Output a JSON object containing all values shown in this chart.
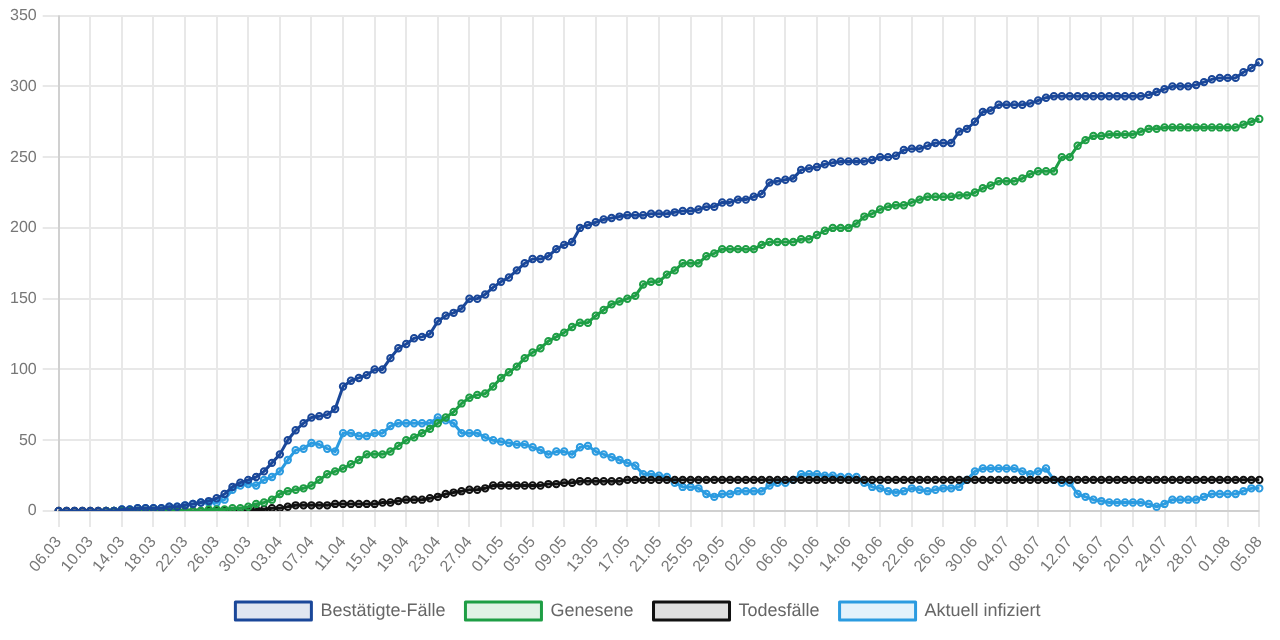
{
  "chart_data": {
    "type": "line",
    "marker": "circle",
    "grid": true,
    "legend": "bottom",
    "ylim": [
      0,
      350
    ],
    "yticks": [
      0,
      50,
      100,
      150,
      200,
      250,
      300,
      350
    ],
    "categories": [
      "06.03",
      null,
      null,
      null,
      "10.03",
      null,
      null,
      null,
      "14.03",
      null,
      null,
      null,
      "18.03",
      null,
      null,
      null,
      "22.03",
      null,
      null,
      null,
      "26.03",
      null,
      null,
      null,
      "30.03",
      null,
      null,
      null,
      "03.04",
      null,
      null,
      null,
      "07.04",
      null,
      null,
      null,
      "11.04",
      null,
      null,
      null,
      "15.04",
      null,
      null,
      null,
      "19.04",
      null,
      null,
      null,
      "23.04",
      null,
      null,
      null,
      "27.04",
      null,
      null,
      null,
      "01.05",
      null,
      null,
      null,
      "05.05",
      null,
      null,
      null,
      "09.05",
      null,
      null,
      null,
      "13.05",
      null,
      null,
      null,
      "17.05",
      null,
      null,
      null,
      "21.05",
      null,
      null,
      null,
      "25.05",
      null,
      null,
      null,
      "29.05",
      null,
      null,
      null,
      "02.06",
      null,
      null,
      null,
      "06.06",
      null,
      null,
      null,
      "10.06",
      null,
      null,
      null,
      "14.06",
      null,
      null,
      null,
      "18.06",
      null,
      null,
      null,
      "22.06",
      null,
      null,
      null,
      "26.06",
      null,
      null,
      null,
      "30.06",
      null,
      null,
      null,
      "04.07",
      null,
      null,
      null,
      "08.07",
      null,
      null,
      null,
      "12.07",
      null,
      null,
      null,
      "16.07",
      null,
      null,
      null,
      "20.07",
      null,
      null,
      null,
      "24.07",
      null,
      null,
      null,
      "28.07",
      null,
      null,
      null,
      "01.08",
      null,
      null,
      null,
      "05.08"
    ],
    "series": [
      {
        "name": "Bestätigte-Fälle",
        "color": "#1a4799",
        "values": [
          0,
          0,
          0,
          0,
          0,
          0,
          0,
          0,
          1,
          1,
          2,
          2,
          2,
          2,
          3,
          3,
          4,
          5,
          6,
          7,
          9,
          12,
          17,
          20,
          22,
          24,
          28,
          34,
          40,
          50,
          57,
          62,
          66,
          67,
          68,
          72,
          88,
          92,
          94,
          96,
          100,
          100,
          108,
          115,
          118,
          122,
          123,
          125,
          134,
          138,
          140,
          143,
          150,
          150,
          153,
          158,
          162,
          165,
          170,
          175,
          178,
          178,
          180,
          185,
          188,
          190,
          200,
          202,
          204,
          206,
          207,
          208,
          209,
          209,
          209,
          210,
          210,
          210,
          211,
          212,
          212,
          213,
          215,
          215,
          218,
          218,
          220,
          220,
          222,
          224,
          232,
          233,
          234,
          235,
          241,
          242,
          243,
          245,
          246,
          247,
          247,
          247,
          247,
          248,
          250,
          250,
          251,
          255,
          256,
          256,
          258,
          260,
          260,
          260,
          268,
          270,
          275,
          282,
          283,
          287,
          287,
          287,
          287,
          288,
          290,
          292,
          293,
          293,
          293,
          293,
          293,
          293,
          293,
          293,
          293,
          293,
          293,
          293,
          294,
          296,
          298,
          300,
          300,
          300,
          301,
          303,
          305,
          306,
          306,
          306,
          310,
          313,
          317
        ]
      },
      {
        "name": "Genesene",
        "color": "#1e9e45",
        "values": [
          null,
          null,
          null,
          null,
          null,
          null,
          0,
          0,
          0,
          0,
          0,
          0,
          0,
          0,
          0,
          0,
          0,
          0,
          0,
          1,
          1,
          1,
          2,
          2,
          3,
          5,
          6,
          8,
          12,
          14,
          15,
          16,
          18,
          22,
          26,
          28,
          30,
          33,
          36,
          40,
          40,
          40,
          42,
          46,
          50,
          52,
          55,
          58,
          62,
          66,
          70,
          76,
          80,
          82,
          83,
          88,
          94,
          98,
          102,
          108,
          112,
          115,
          120,
          123,
          126,
          130,
          133,
          133,
          138,
          142,
          146,
          148,
          150,
          152,
          160,
          162,
          162,
          167,
          170,
          175,
          175,
          175,
          180,
          182,
          185,
          185,
          185,
          185,
          185,
          188,
          190,
          190,
          190,
          190,
          192,
          192,
          195,
          198,
          200,
          200,
          200,
          203,
          208,
          210,
          213,
          215,
          216,
          216,
          218,
          220,
          222,
          222,
          222,
          222,
          223,
          223,
          225,
          228,
          230,
          233,
          233,
          233,
          235,
          238,
          240,
          240,
          240,
          250,
          250,
          258,
          262,
          265,
          265,
          266,
          266,
          266,
          266,
          268,
          270,
          270,
          271,
          271,
          271,
          271,
          271,
          271,
          271,
          271,
          271,
          271,
          273,
          275,
          277
        ]
      },
      {
        "name": "Todesfälle",
        "color": "#111111",
        "values": [
          0,
          0,
          0,
          0,
          0,
          0,
          0,
          0,
          0,
          0,
          0,
          0,
          0,
          0,
          0,
          0,
          0,
          0,
          0,
          0,
          0,
          0,
          0,
          0,
          0,
          1,
          1,
          2,
          2,
          3,
          4,
          4,
          4,
          4,
          4,
          5,
          5,
          5,
          5,
          5,
          5,
          6,
          6,
          7,
          8,
          8,
          8,
          9,
          10,
          12,
          13,
          14,
          15,
          15,
          16,
          18,
          18,
          18,
          18,
          18,
          18,
          18,
          19,
          19,
          20,
          20,
          21,
          21,
          21,
          21,
          21,
          21,
          22,
          22,
          22,
          22,
          22,
          22,
          22,
          22,
          22,
          22,
          22,
          22,
          22,
          22,
          22,
          22,
          22,
          22,
          22,
          22,
          22,
          22,
          22,
          22,
          22,
          22,
          22,
          22,
          22,
          22,
          22,
          22,
          22,
          22,
          22,
          22,
          22,
          22,
          22,
          22,
          22,
          22,
          22,
          22,
          22,
          22,
          22,
          22,
          22,
          22,
          22,
          22,
          22,
          22,
          22,
          22,
          22,
          22,
          22,
          22,
          22,
          22,
          22,
          22,
          22,
          22,
          22,
          22,
          22,
          22,
          22,
          22,
          22,
          22,
          22,
          22,
          22,
          22,
          22,
          22,
          22
        ]
      },
      {
        "name": "Aktuell infiziert",
        "color": "#2b9be0",
        "values": [
          null,
          null,
          null,
          null,
          null,
          null,
          null,
          0,
          1,
          1,
          2,
          2,
          2,
          2,
          3,
          3,
          4,
          5,
          6,
          6,
          6,
          8,
          15,
          18,
          19,
          18,
          22,
          24,
          28,
          36,
          43,
          44,
          48,
          47,
          44,
          42,
          55,
          55,
          53,
          53,
          55,
          55,
          60,
          62,
          62,
          62,
          62,
          62,
          66,
          64,
          62,
          55,
          55,
          55,
          52,
          50,
          49,
          48,
          47,
          47,
          45,
          43,
          40,
          42,
          42,
          40,
          45,
          46,
          42,
          40,
          38,
          36,
          34,
          32,
          26,
          26,
          25,
          24,
          20,
          17,
          17,
          16,
          12,
          10,
          12,
          12,
          14,
          14,
          14,
          14,
          18,
          20,
          20,
          22,
          26,
          26,
          26,
          25,
          25,
          24,
          24,
          24,
          20,
          17,
          16,
          14,
          13,
          14,
          16,
          15,
          14,
          15,
          16,
          16,
          17,
          22,
          28,
          30,
          30,
          30,
          30,
          30,
          28,
          26,
          28,
          30,
          22,
          20,
          20,
          12,
          10,
          8,
          7,
          6,
          6,
          6,
          6,
          6,
          5,
          3,
          5,
          8,
          8,
          8,
          8,
          10,
          12,
          12,
          12,
          12,
          14,
          16,
          16
        ]
      }
    ]
  }
}
